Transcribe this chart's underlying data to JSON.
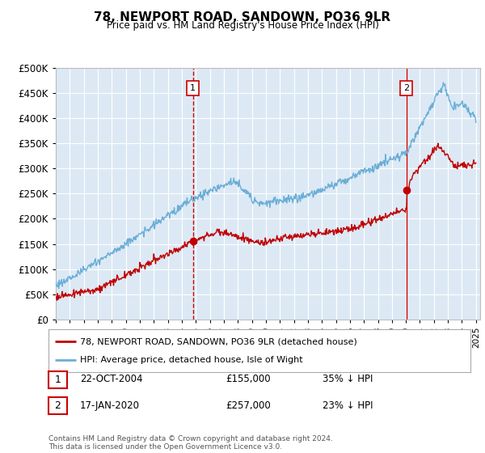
{
  "title": "78, NEWPORT ROAD, SANDOWN, PO36 9LR",
  "subtitle": "Price paid vs. HM Land Registry's House Price Index (HPI)",
  "bg_color": "#dce9f5",
  "legend_line1": "78, NEWPORT ROAD, SANDOWN, PO36 9LR (detached house)",
  "legend_line2": "HPI: Average price, detached house, Isle of Wight",
  "sale1_date": "22-OCT-2004",
  "sale1_price": 155000,
  "sale1_pct": "35% ↓ HPI",
  "sale2_date": "17-JAN-2020",
  "sale2_price": 257000,
  "sale2_pct": "23% ↓ HPI",
  "footnote": "Contains HM Land Registry data © Crown copyright and database right 2024.\nThis data is licensed under the Open Government Licence v3.0.",
  "hpi_color": "#6baed6",
  "price_color": "#c00000",
  "vline_color": "#cc0000",
  "year_start": 1995,
  "year_end": 2025,
  "ylim_max": 500000,
  "yticks": [
    0,
    50000,
    100000,
    150000,
    200000,
    250000,
    300000,
    350000,
    400000,
    450000,
    500000
  ]
}
